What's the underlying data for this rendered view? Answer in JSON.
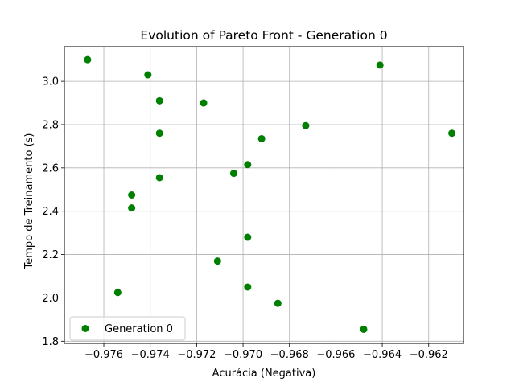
{
  "chart_data": {
    "type": "scatter",
    "title": "Evolution of Pareto Front - Generation 0",
    "xlabel": "Acurácia (Negativa)",
    "ylabel": "Tempo de Treinamento (s)",
    "xlim": [
      -0.9777,
      -0.9605
    ],
    "ylim": [
      1.79,
      3.16
    ],
    "xticks": [
      -0.976,
      -0.974,
      -0.972,
      -0.97,
      -0.968,
      -0.966,
      -0.964,
      -0.962
    ],
    "xtick_labels": [
      "−0.976",
      "−0.974",
      "−0.972",
      "−0.970",
      "−0.968",
      "−0.966",
      "−0.964",
      "−0.962"
    ],
    "yticks": [
      1.8,
      2.0,
      2.2,
      2.4,
      2.6,
      2.8,
      3.0
    ],
    "ytick_labels": [
      "1.8",
      "2.0",
      "2.2",
      "2.4",
      "2.6",
      "2.8",
      "3.0"
    ],
    "grid": true,
    "legend_position": "lower-left",
    "series": [
      {
        "name": "Generation 0",
        "color": "#008000",
        "points": [
          {
            "x": -0.9767,
            "y": 3.1
          },
          {
            "x": -0.9741,
            "y": 3.03
          },
          {
            "x": -0.9736,
            "y": 2.91
          },
          {
            "x": -0.9717,
            "y": 2.9
          },
          {
            "x": -0.9736,
            "y": 2.76
          },
          {
            "x": -0.9673,
            "y": 2.795
          },
          {
            "x": -0.9692,
            "y": 2.735
          },
          {
            "x": -0.9641,
            "y": 3.075
          },
          {
            "x": -0.961,
            "y": 2.76
          },
          {
            "x": -0.9698,
            "y": 2.615
          },
          {
            "x": -0.9704,
            "y": 2.575
          },
          {
            "x": -0.9736,
            "y": 2.555
          },
          {
            "x": -0.9748,
            "y": 2.475
          },
          {
            "x": -0.9748,
            "y": 2.415
          },
          {
            "x": -0.9698,
            "y": 2.28
          },
          {
            "x": -0.9711,
            "y": 2.17
          },
          {
            "x": -0.9698,
            "y": 2.05
          },
          {
            "x": -0.9754,
            "y": 2.025
          },
          {
            "x": -0.9685,
            "y": 1.975
          },
          {
            "x": -0.9648,
            "y": 1.855
          }
        ]
      }
    ]
  }
}
